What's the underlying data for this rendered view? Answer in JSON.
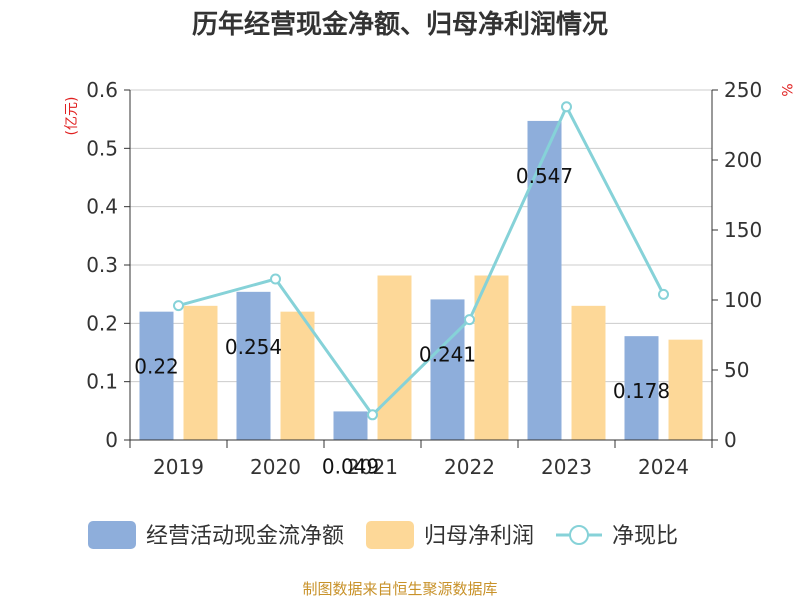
{
  "chart_data": {
    "type": "bar",
    "title": "历年经营现金净额、归母净利润情况",
    "left_unit": "(亿元)",
    "right_unit": "%",
    "categories": [
      "2019",
      "2020",
      "2021",
      "2022",
      "2023",
      "2024"
    ],
    "left_ylim": [
      0,
      0.6
    ],
    "left_ticks": [
      "0",
      "0.1",
      "0.2",
      "0.3",
      "0.4",
      "0.5",
      "0.6"
    ],
    "right_ylim": [
      0,
      250
    ],
    "right_ticks": [
      "0",
      "50",
      "100",
      "150",
      "200",
      "250"
    ],
    "grid": true,
    "legend_position": "bottom",
    "series": [
      {
        "name": "经营活动现金流净额",
        "kind": "bar",
        "axis": "left",
        "color": "#8eaedb",
        "values": [
          0.22,
          0.254,
          0.049,
          0.241,
          0.547,
          0.178
        ],
        "labels": [
          "0.22",
          "0.254",
          "0.049",
          "0.241",
          "0.547",
          "0.178"
        ]
      },
      {
        "name": "归母净利润",
        "kind": "bar",
        "axis": "left",
        "color": "#fdd898",
        "values": [
          0.23,
          0.22,
          0.282,
          0.282,
          0.23,
          0.172
        ]
      },
      {
        "name": "净现比",
        "kind": "line",
        "axis": "right",
        "color": "#86d2d8",
        "values": [
          96,
          115,
          18,
          86,
          238,
          104
        ]
      }
    ]
  },
  "source_note": "制图数据来自恒生聚源数据库"
}
